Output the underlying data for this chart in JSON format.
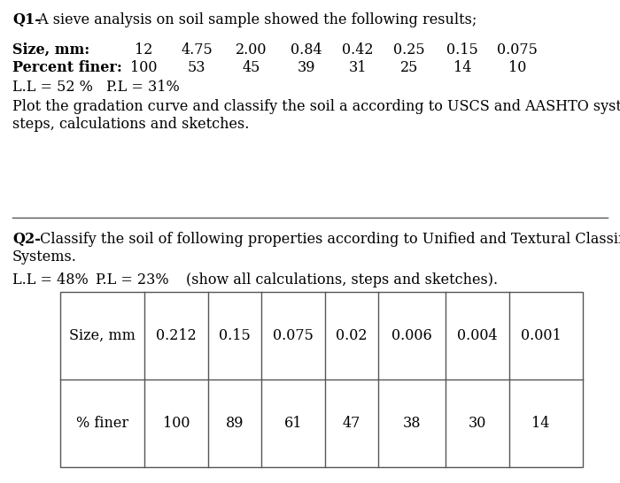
{
  "bg_color": "#ffffff",
  "q1_bold_prefix": "Q1-",
  "q1_text": " A sieve analysis on soil sample showed the following results;",
  "q1_row1_label_bold": "Size, mm:",
  "q1_row1_values": [
    "12",
    "4.75",
    "2.00",
    "0.84",
    "0.42",
    "0.25",
    "0.15",
    "0.075"
  ],
  "q1_row2_label_bold": "Percent finer:",
  "q1_row2_values": [
    "100",
    "53",
    "45",
    "39",
    "31",
    "25",
    "14",
    "10"
  ],
  "q1_ll": "L.L = 52 %",
  "q1_pl": "P.L = 31%",
  "q1_instruction_line1": "Plot the gradation curve and classify the soil a according to USCS and AASHTO system. Show",
  "q1_instruction_line2": "steps, calculations and sketches.",
  "q2_bold_prefix": "Q2-",
  "q2_text_line1": " Classify the soil of following properties according to Unified and Textural Classification",
  "q2_text_line2": "Systems.",
  "q2_ll": "L.L = 48%",
  "q2_pl": "P.L = 23%",
  "q2_note": "(show all calculations, steps and sketches).",
  "table_headers": [
    "Size, mm",
    "0.212",
    "0.15",
    "0.075",
    "0.02",
    "0.006",
    "0.004",
    "0.001"
  ],
  "table_row": [
    "% finer",
    "100",
    "89",
    "61",
    "47",
    "38",
    "30",
    "14"
  ],
  "font_size": 11.5,
  "font_family": "DejaVu Serif"
}
